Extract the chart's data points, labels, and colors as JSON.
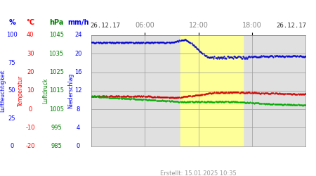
{
  "title_left": "26.12.17",
  "title_right": "26.12.17",
  "created_text": "Erstellt: 15.01.2025 10:35",
  "xlabel_times": [
    "06:00",
    "12:00",
    "18:00"
  ],
  "axis_header_pct": "%",
  "axis_header_temp": "°C",
  "axis_header_hpa": "hPa",
  "axis_header_mmh": "mm/h",
  "plot_bg_color": "#e0e0e0",
  "yellow_bg_color": "#ffff99",
  "yellow_xstart": 10.0,
  "yellow_xend": 17.0,
  "grid_color": "#999999",
  "humidity_color": "#0000cc",
  "temperature_color": "#cc0000",
  "pressure_color": "#00aa00",
  "time_label_color": "#888888",
  "date_label_color": "#333333",
  "hum_ticks": [
    0,
    25,
    50,
    75,
    100
  ],
  "temp_ticks": [
    -20,
    -10,
    0,
    10,
    20,
    30,
    40
  ],
  "pres_ticks": [
    985,
    995,
    1005,
    1015,
    1025,
    1035,
    1045
  ],
  "precip_ticks": [
    0,
    4,
    8,
    12,
    16,
    20,
    24
  ],
  "hum_min": 0,
  "hum_max": 100,
  "temp_min": -20,
  "temp_max": 40,
  "pres_min": 985,
  "pres_max": 1045,
  "precip_min": 0,
  "precip_max": 24
}
